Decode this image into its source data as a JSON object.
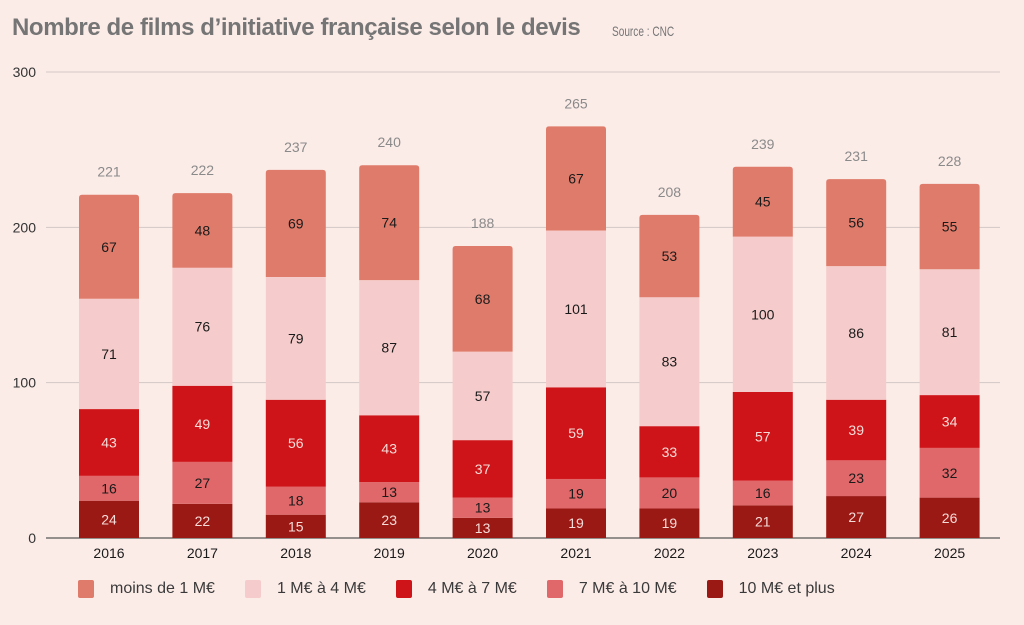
{
  "header": {
    "title": "Nombre de films d’initiative française selon le devis",
    "source": "Source : CNC"
  },
  "chart_data": {
    "type": "bar",
    "stacked": true,
    "title": "Nombre de films d’initiative française selon le devis",
    "source": "Source : CNC",
    "xlabel": "",
    "ylabel": "",
    "ylim": [
      0,
      300
    ],
    "yticks": [
      0,
      100,
      200,
      300
    ],
    "grid": true,
    "legend_position": "bottom",
    "categories": [
      "2016",
      "2017",
      "2018",
      "2019",
      "2020",
      "2021",
      "2022",
      "2023",
      "2024",
      "2025"
    ],
    "totals": [
      221,
      222,
      237,
      240,
      188,
      265,
      208,
      239,
      231,
      228
    ],
    "series": [
      {
        "name": "10 M€ et plus",
        "color": "#9b1915",
        "label_color": "#f6dcd8",
        "values": [
          24,
          22,
          15,
          23,
          13,
          19,
          19,
          21,
          27,
          26
        ]
      },
      {
        "name": "7 M€ à 10 M€",
        "color": "#e0686a",
        "label_color": "#1a1a1a",
        "values": [
          16,
          27,
          18,
          13,
          13,
          19,
          20,
          16,
          23,
          32
        ]
      },
      {
        "name": "4 M€ à 7 M€",
        "color": "#cf1419",
        "label_color": "#f6dcd8",
        "values": [
          43,
          49,
          56,
          43,
          37,
          59,
          33,
          57,
          39,
          34
        ]
      },
      {
        "name": "1 M€ à 4 M€",
        "color": "#f5cccb",
        "label_color": "#1a1a1a",
        "values": [
          71,
          76,
          79,
          87,
          57,
          101,
          83,
          100,
          86,
          81
        ]
      },
      {
        "name": "moins de 1 M€",
        "color": "#df7b6a",
        "label_color": "#1a1a1a",
        "values": [
          67,
          48,
          69,
          74,
          68,
          67,
          53,
          45,
          56,
          55
        ]
      }
    ],
    "legend_order": [
      "moins de 1 M€",
      "1 M€ à 4 M€",
      "4 M€ à 7 M€",
      "7 M€ à 10 M€",
      "10 M€ et plus"
    ]
  }
}
